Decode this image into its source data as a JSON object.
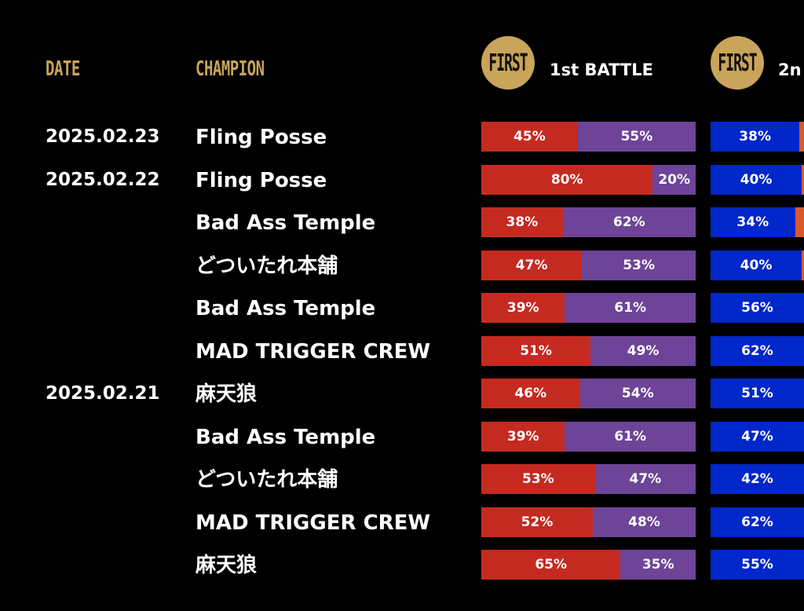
{
  "colors": {
    "gold": "#c9a45a",
    "red": "#c52a20",
    "purple": "#6d4498",
    "blue": "#0027c9",
    "orange": "#d85a2a",
    "background": "#000000"
  },
  "header": {
    "date_label": "DATE",
    "champion_label": "CHAMPION",
    "battles": [
      {
        "badge": "FIRST",
        "label": "1st BATTLE"
      },
      {
        "badge": "FIRST",
        "label": "2n"
      }
    ]
  },
  "rows": [
    {
      "date": "2025.02.23",
      "champion": "Fling Posse",
      "battle1": {
        "left": 45,
        "right": 55,
        "left_label": "45%",
        "right_label": "55%"
      },
      "battle2": {
        "left": 38,
        "right": 2,
        "left_label": "38%",
        "right_label": ""
      }
    },
    {
      "date": "2025.02.22",
      "champion": "Fling Posse",
      "battle1": {
        "left": 80,
        "right": 20,
        "left_label": "80%",
        "right_label": "20%"
      },
      "battle2": {
        "left": 40,
        "right": 1,
        "left_label": "40%",
        "right_label": ""
      }
    },
    {
      "date": "",
      "champion": "Bad Ass Temple",
      "battle1": {
        "left": 38,
        "right": 62,
        "left_label": "38%",
        "right_label": "62%"
      },
      "battle2": {
        "left": 34,
        "right": 4,
        "left_label": "34%",
        "right_label": ""
      }
    },
    {
      "date": "",
      "champion": "どついたれ本舗",
      "battle1": {
        "left": 47,
        "right": 53,
        "left_label": "47%",
        "right_label": "53%"
      },
      "battle2": {
        "left": 40,
        "right": 1,
        "left_label": "40%",
        "right_label": ""
      }
    },
    {
      "date": "",
      "champion": "Bad Ass Temple",
      "battle1": {
        "left": 39,
        "right": 61,
        "left_label": "39%",
        "right_label": "61%"
      },
      "battle2": {
        "left": 56,
        "right": 0,
        "left_label": "56%",
        "right_label": ""
      }
    },
    {
      "date": "",
      "champion": "MAD TRIGGER CREW",
      "battle1": {
        "left": 51,
        "right": 49,
        "left_label": "51%",
        "right_label": "49%"
      },
      "battle2": {
        "left": 62,
        "right": 0,
        "left_label": "62%",
        "right_label": ""
      }
    },
    {
      "date": "2025.02.21",
      "champion": "麻天狼",
      "battle1": {
        "left": 46,
        "right": 54,
        "left_label": "46%",
        "right_label": "54%"
      },
      "battle2": {
        "left": 51,
        "right": 0,
        "left_label": "51%",
        "right_label": ""
      }
    },
    {
      "date": "",
      "champion": "Bad Ass Temple",
      "battle1": {
        "left": 39,
        "right": 61,
        "left_label": "39%",
        "right_label": "61%"
      },
      "battle2": {
        "left": 47,
        "right": 0,
        "left_label": "47%",
        "right_label": ""
      }
    },
    {
      "date": "",
      "champion": "どついたれ本舗",
      "battle1": {
        "left": 53,
        "right": 47,
        "left_label": "53%",
        "right_label": "47%"
      },
      "battle2": {
        "left": 42,
        "right": 0,
        "left_label": "42%",
        "right_label": ""
      }
    },
    {
      "date": "",
      "champion": "MAD TRIGGER CREW",
      "battle1": {
        "left": 52,
        "right": 48,
        "left_label": "52%",
        "right_label": "48%"
      },
      "battle2": {
        "left": 62,
        "right": 0,
        "left_label": "62%",
        "right_label": ""
      }
    },
    {
      "date": "",
      "champion": "麻天狼",
      "battle1": {
        "left": 65,
        "right": 35,
        "left_label": "65%",
        "right_label": "35%"
      },
      "battle2": {
        "left": 55,
        "right": 0,
        "left_label": "55%",
        "right_label": ""
      }
    }
  ]
}
